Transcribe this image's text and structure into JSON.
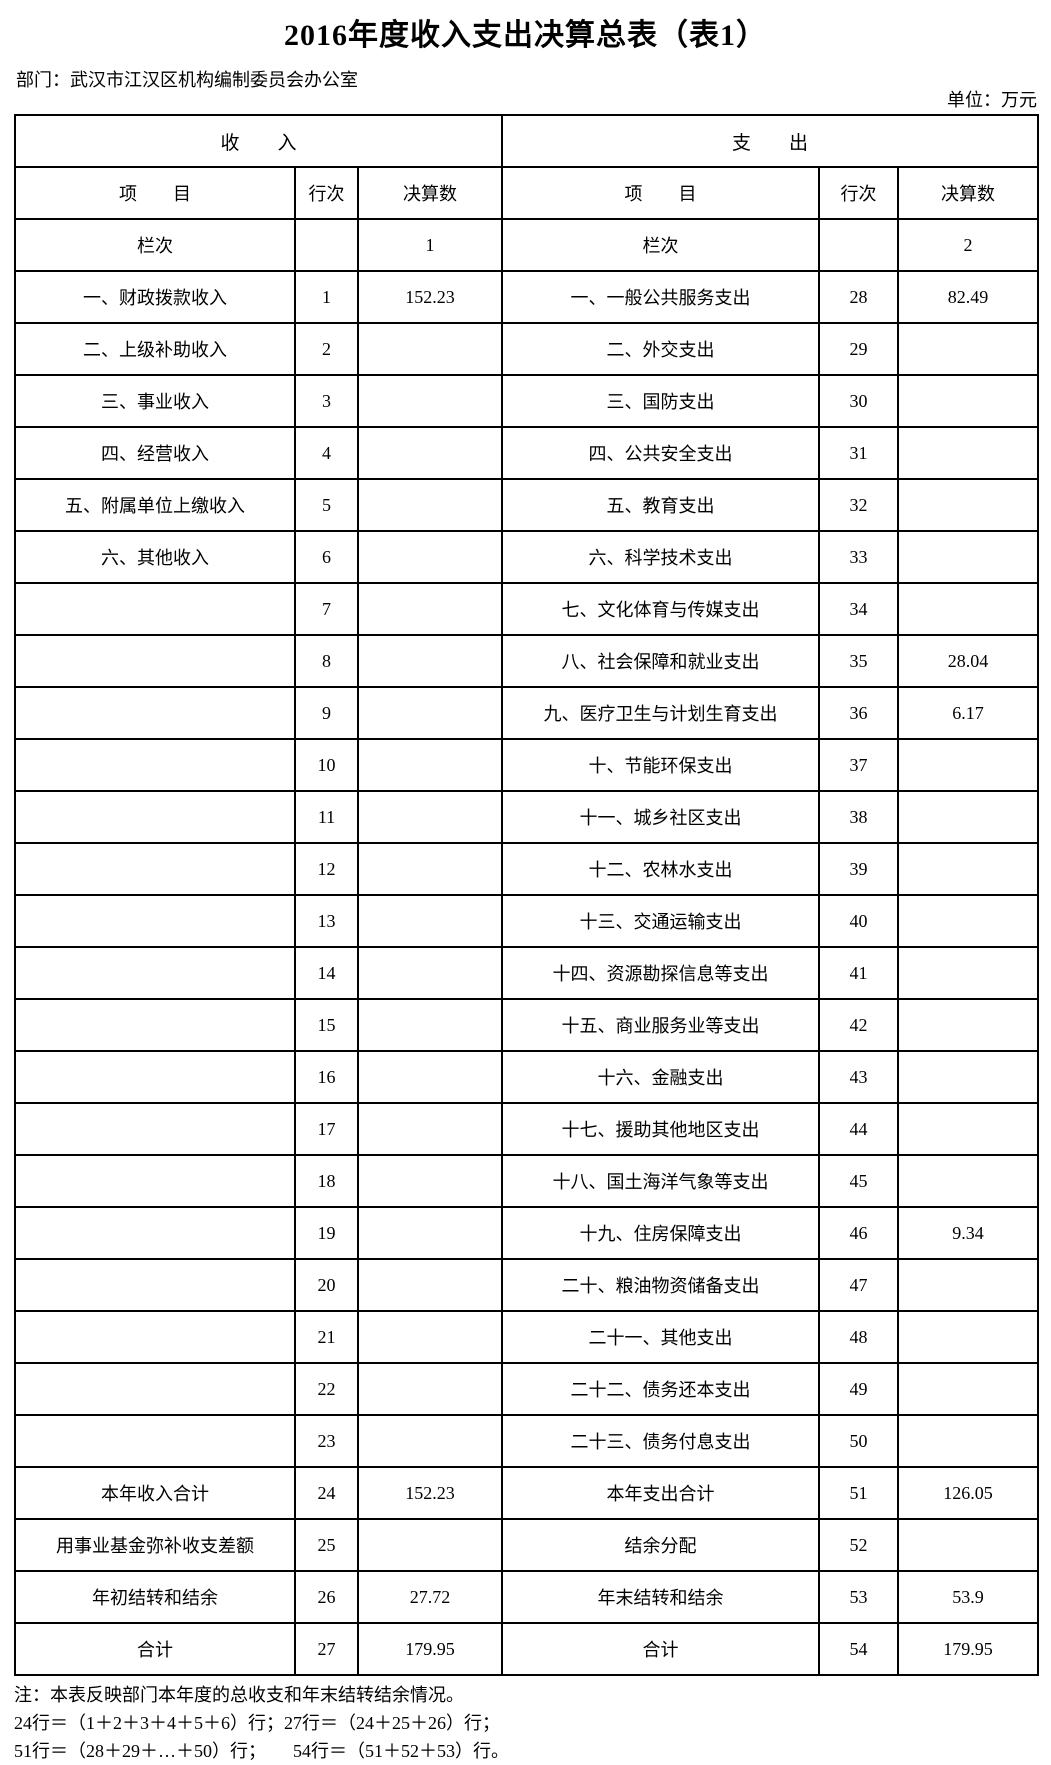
{
  "page": {
    "title": "2016年度收入支出决算总表（表1）",
    "department": "部门：武汉市江汉区机构编制委员会办公室",
    "unit": "单位：万元"
  },
  "table": {
    "income_section_header": "收　　入",
    "expense_section_header": "支　　出",
    "columns": {
      "item": "项　　目",
      "row_no": "行次",
      "amount": "决算数"
    },
    "column_index_row": {
      "label": "栏次",
      "income_index": "1",
      "expense_index": "2"
    },
    "rows": [
      {
        "income_item": "一、财政拨款收入",
        "income_row_no": "1",
        "income_amount": "152.23",
        "expense_item": "一、一般公共服务支出",
        "expense_row_no": "28",
        "expense_amount": "82.49"
      },
      {
        "income_item": "二、上级补助收入",
        "income_row_no": "2",
        "income_amount": "",
        "expense_item": "二、外交支出",
        "expense_row_no": "29",
        "expense_amount": ""
      },
      {
        "income_item": "三、事业收入",
        "income_row_no": "3",
        "income_amount": "",
        "expense_item": "三、国防支出",
        "expense_row_no": "30",
        "expense_amount": ""
      },
      {
        "income_item": "四、经营收入",
        "income_row_no": "4",
        "income_amount": "",
        "expense_item": "四、公共安全支出",
        "expense_row_no": "31",
        "expense_amount": ""
      },
      {
        "income_item": "五、附属单位上缴收入",
        "income_row_no": "5",
        "income_amount": "",
        "expense_item": "五、教育支出",
        "expense_row_no": "32",
        "expense_amount": ""
      },
      {
        "income_item": "六、其他收入",
        "income_row_no": "6",
        "income_amount": "",
        "expense_item": "六、科学技术支出",
        "expense_row_no": "33",
        "expense_amount": ""
      },
      {
        "income_item": "",
        "income_row_no": "7",
        "income_amount": "",
        "expense_item": "七、文化体育与传媒支出",
        "expense_row_no": "34",
        "expense_amount": ""
      },
      {
        "income_item": "",
        "income_row_no": "8",
        "income_amount": "",
        "expense_item": "八、社会保障和就业支出",
        "expense_row_no": "35",
        "expense_amount": "28.04"
      },
      {
        "income_item": "",
        "income_row_no": "9",
        "income_amount": "",
        "expense_item": "九、医疗卫生与计划生育支出",
        "expense_row_no": "36",
        "expense_amount": "6.17"
      },
      {
        "income_item": "",
        "income_row_no": "10",
        "income_amount": "",
        "expense_item": "十、节能环保支出",
        "expense_row_no": "37",
        "expense_amount": ""
      },
      {
        "income_item": "",
        "income_row_no": "11",
        "income_amount": "",
        "expense_item": "十一、城乡社区支出",
        "expense_row_no": "38",
        "expense_amount": ""
      },
      {
        "income_item": "",
        "income_row_no": "12",
        "income_amount": "",
        "expense_item": "十二、农林水支出",
        "expense_row_no": "39",
        "expense_amount": ""
      },
      {
        "income_item": "",
        "income_row_no": "13",
        "income_amount": "",
        "expense_item": "十三、交通运输支出",
        "expense_row_no": "40",
        "expense_amount": ""
      },
      {
        "income_item": "",
        "income_row_no": "14",
        "income_amount": "",
        "expense_item": "十四、资源勘探信息等支出",
        "expense_row_no": "41",
        "expense_amount": ""
      },
      {
        "income_item": "",
        "income_row_no": "15",
        "income_amount": "",
        "expense_item": "十五、商业服务业等支出",
        "expense_row_no": "42",
        "expense_amount": ""
      },
      {
        "income_item": "",
        "income_row_no": "16",
        "income_amount": "",
        "expense_item": "十六、金融支出",
        "expense_row_no": "43",
        "expense_amount": ""
      },
      {
        "income_item": "",
        "income_row_no": "17",
        "income_amount": "",
        "expense_item": "十七、援助其他地区支出",
        "expense_row_no": "44",
        "expense_amount": ""
      },
      {
        "income_item": "",
        "income_row_no": "18",
        "income_amount": "",
        "expense_item": "十八、国土海洋气象等支出",
        "expense_row_no": "45",
        "expense_amount": ""
      },
      {
        "income_item": "",
        "income_row_no": "19",
        "income_amount": "",
        "expense_item": "十九、住房保障支出",
        "expense_row_no": "46",
        "expense_amount": "9.34"
      },
      {
        "income_item": "",
        "income_row_no": "20",
        "income_amount": "",
        "expense_item": "二十、粮油物资储备支出",
        "expense_row_no": "47",
        "expense_amount": ""
      },
      {
        "income_item": "",
        "income_row_no": "21",
        "income_amount": "",
        "expense_item": "二十一、其他支出",
        "expense_row_no": "48",
        "expense_amount": ""
      },
      {
        "income_item": "",
        "income_row_no": "22",
        "income_amount": "",
        "expense_item": "二十二、债务还本支出",
        "expense_row_no": "49",
        "expense_amount": ""
      },
      {
        "income_item": "",
        "income_row_no": "23",
        "income_amount": "",
        "expense_item": "二十三、债务付息支出",
        "expense_row_no": "50",
        "expense_amount": ""
      },
      {
        "income_item": "本年收入合计",
        "income_row_no": "24",
        "income_amount": "152.23",
        "expense_item": "本年支出合计",
        "expense_row_no": "51",
        "expense_amount": "126.05",
        "summary": true,
        "bold": true
      },
      {
        "income_item": "用事业基金弥补收支差额",
        "income_row_no": "25",
        "income_amount": "",
        "expense_item": "结余分配",
        "expense_row_no": "52",
        "expense_amount": "",
        "summary": true
      },
      {
        "income_item": "年初结转和结余",
        "income_row_no": "26",
        "income_amount": "27.72",
        "expense_item": "年末结转和结余",
        "expense_row_no": "53",
        "expense_amount": "53.9",
        "summary": true
      },
      {
        "income_item": "合计",
        "income_row_no": "27",
        "income_amount": "179.95",
        "expense_item": "合计",
        "expense_row_no": "54",
        "expense_amount": "179.95",
        "summary": true,
        "bold": true
      }
    ]
  },
  "notes": {
    "line1": "注：本表反映部门本年度的总收支和年末结转结余情况。",
    "line2": "24行＝（1＋2＋3＋4＋5＋6）行；27行＝（24＋25＋26）行；",
    "line3": "51行＝（28＋29＋…＋50）行；　　54行＝（51＋52＋53）行。"
  }
}
